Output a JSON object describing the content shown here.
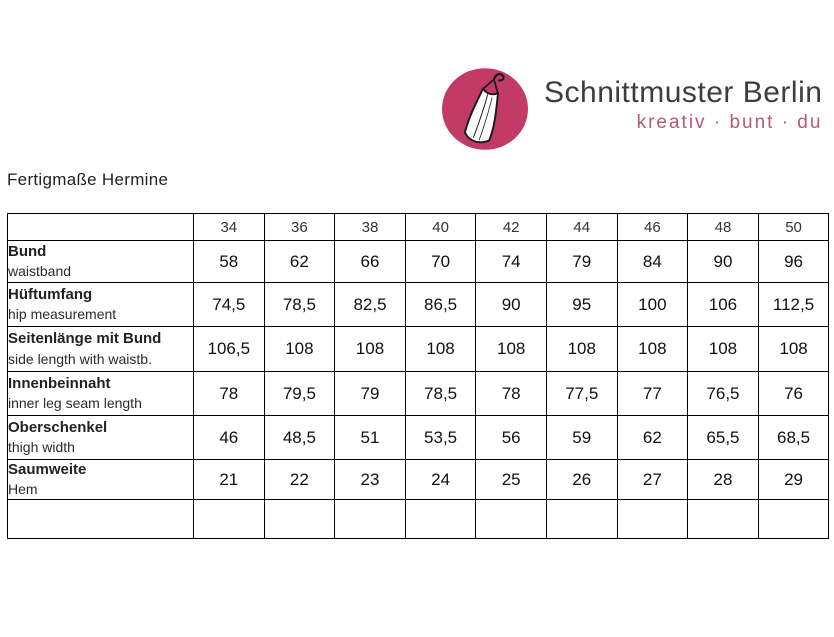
{
  "logo": {
    "brand": "Schnittmuster Berlin",
    "tagline": "kreativ · bunt · du",
    "circle_color": "#c43a67",
    "tagline_color": "#b5587a",
    "icon": "dress-on-hanger-icon"
  },
  "page": {
    "title": "Fertigmaße Hermine"
  },
  "chart_data": {
    "type": "table",
    "title": "Fertigmaße Hermine",
    "columns": [
      "",
      "34",
      "36",
      "38",
      "40",
      "42",
      "44",
      "46",
      "48",
      "50"
    ],
    "rows": [
      {
        "de": "Bund",
        "en": "waistband",
        "values": [
          "58",
          "62",
          "66",
          "70",
          "74",
          "79",
          "84",
          "90",
          "96"
        ]
      },
      {
        "de": "Hüftumfang",
        "en": "hip measurement",
        "values": [
          "74,5",
          "78,5",
          "82,5",
          "86,5",
          "90",
          "95",
          "100",
          "106",
          "112,5"
        ]
      },
      {
        "de": "Seitenlänge mit Bund",
        "en": "side length with waistb.",
        "values": [
          "106,5",
          "108",
          "108",
          "108",
          "108",
          "108",
          "108",
          "108",
          "108"
        ]
      },
      {
        "de": "Innenbeinnaht",
        "en": "inner leg seam length",
        "values": [
          "78",
          "79,5",
          "79",
          "78,5",
          "78",
          "77,5",
          "77",
          "76,5",
          "76"
        ]
      },
      {
        "de": "Oberschenkel",
        "en": "thigh width",
        "values": [
          "46",
          "48,5",
          "51",
          "53,5",
          "56",
          "59",
          "62",
          "65,5",
          "68,5"
        ]
      },
      {
        "de": "Saumweite",
        "en": "Hem",
        "values": [
          "21",
          "22",
          "23",
          "24",
          "25",
          "26",
          "27",
          "28",
          "29"
        ]
      },
      {
        "de": "",
        "en": "",
        "values": [
          "",
          "",
          "",
          "",
          "",
          "",
          "",
          "",
          ""
        ]
      }
    ]
  }
}
